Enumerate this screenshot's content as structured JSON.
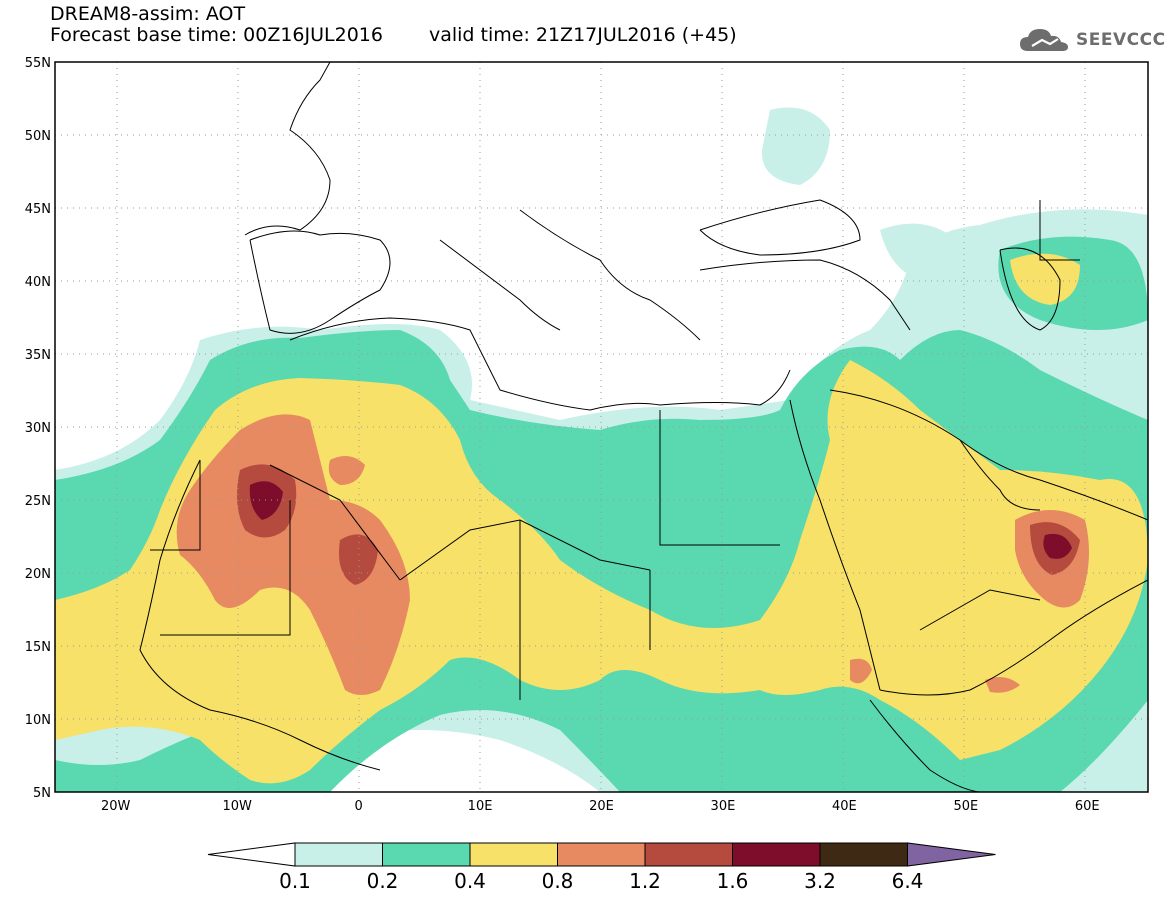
{
  "title": {
    "line1": "DREAM8-assim: AOT",
    "base_time_label": "Forecast base time: 00Z16JUL2016",
    "valid_time_label": "valid time: 21Z17JUL2016 (+45)"
  },
  "logo": {
    "text": "SEEVCCC",
    "icon": "cloud-icon"
  },
  "axes": {
    "lon_labels": [
      "20W",
      "10W",
      "0",
      "10E",
      "20E",
      "30E",
      "40E",
      "50E",
      "60E"
    ],
    "lat_labels": [
      "55N",
      "50N",
      "45N",
      "40N",
      "35N",
      "30N",
      "25N",
      "20N",
      "15N",
      "10N",
      "5N"
    ],
    "lon_range": [
      -25,
      65
    ],
    "lat_range": [
      5,
      55
    ],
    "grid": "dotted"
  },
  "colorbar": {
    "labels": [
      "0.1",
      "0.2",
      "0.4",
      "0.8",
      "1.2",
      "1.6",
      "3.2",
      "6.4"
    ],
    "colors": [
      "#ffffff",
      "#c8efe8",
      "#5ad8b0",
      "#f7e168",
      "#e78a62",
      "#b54a3e",
      "#7e0d2c",
      "#3e2a14",
      "#8064a2"
    ]
  }
}
